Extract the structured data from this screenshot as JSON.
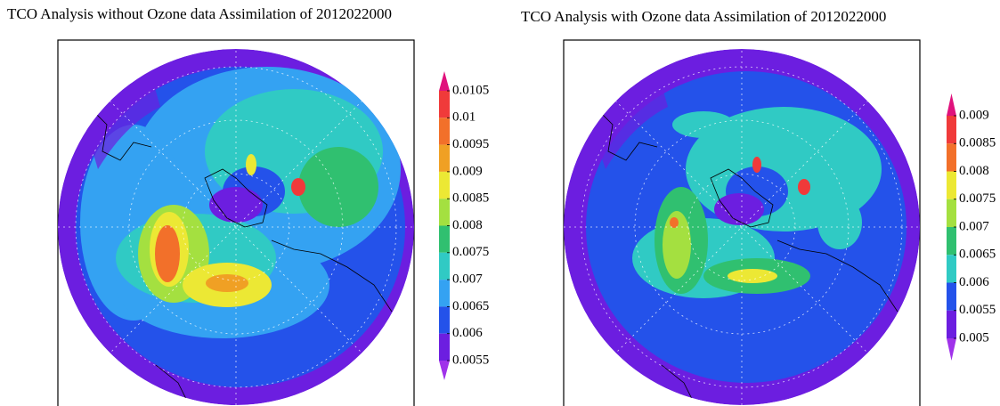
{
  "panels": [
    {
      "title": "TCO Analysis without Ozone data Assimilation of 2012022000",
      "colorbar": {
        "ticks": [
          0.0105,
          0.01,
          0.0095,
          0.009,
          0.0085,
          0.008,
          0.0075,
          0.007,
          0.0065,
          0.006,
          0.0055
        ],
        "colors": [
          "#e0127c",
          "#f03a3a",
          "#f2702a",
          "#f0a024",
          "#ece834",
          "#a4e040",
          "#30c070",
          "#30cac4",
          "#34a2f2",
          "#2452ea",
          "#6c1ee0",
          "#a032ea"
        ]
      }
    },
    {
      "title": "TCO Analysis with Ozone data Assimilation of 2012022000",
      "colorbar": {
        "ticks": [
          0.009,
          0.0085,
          0.008,
          0.0075,
          0.007,
          0.0065,
          0.006,
          0.0055,
          0.005
        ],
        "colors": [
          "#e0127c",
          "#f03a3a",
          "#f2702a",
          "#ece834",
          "#a4e040",
          "#30c070",
          "#30cac4",
          "#2452ea",
          "#6c1ee0",
          "#a032ea"
        ]
      }
    }
  ]
}
